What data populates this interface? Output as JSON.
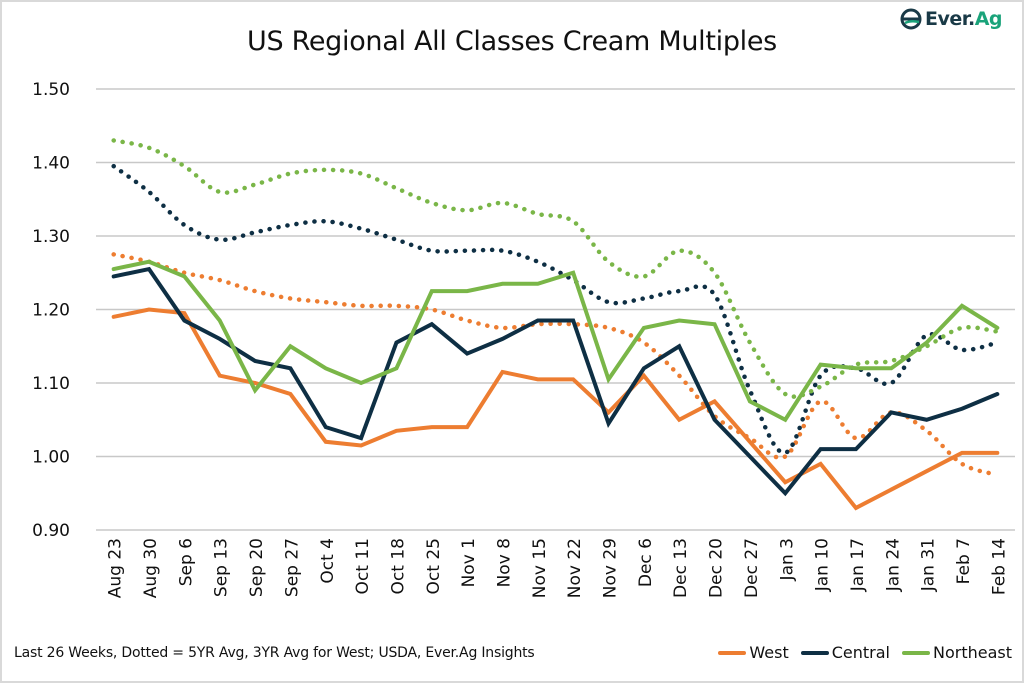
{
  "logo": {
    "brand_main": "Ever.",
    "brand_accent": "Ag"
  },
  "footer": {
    "note": "Last 26 Weeks, Dotted = 5YR Avg, 3YR Avg for West; USDA, Ever.Ag Insights"
  },
  "colors": {
    "West": "#ED7D31",
    "Central": "#0E2F44",
    "Northeast": "#7AB648",
    "grid": "#c8c8c8"
  },
  "chart_data": {
    "type": "line",
    "title": "US Regional All Classes Cream Multiples",
    "xlabel": "",
    "ylabel": "",
    "ylim": [
      0.9,
      1.5
    ],
    "yticks": [
      "0.90",
      "1.00",
      "1.10",
      "1.20",
      "1.30",
      "1.40",
      "1.50"
    ],
    "ytick_values": [
      0.9,
      1.0,
      1.1,
      1.2,
      1.3,
      1.4,
      1.5
    ],
    "grid": true,
    "legend_position": "bottom-right",
    "categories": [
      "Aug 23",
      "Aug 30",
      "Sep 6",
      "Sep 13",
      "Sep 20",
      "Sep 27",
      "Oct 4",
      "Oct 11",
      "Oct 18",
      "Oct 25",
      "Nov 1",
      "Nov 8",
      "Nov 15",
      "Nov 22",
      "Nov 29",
      "Dec 6",
      "Dec 13",
      "Dec 20",
      "Dec 27",
      "Jan 3",
      "Jan 10",
      "Jan 17",
      "Jan 24",
      "Jan 31",
      "Feb 7",
      "Feb 14"
    ],
    "series": [
      {
        "name": "West",
        "style": "solid",
        "color": "#ED7D31",
        "values": [
          1.19,
          1.2,
          1.195,
          1.11,
          1.1,
          1.085,
          1.02,
          1.015,
          1.035,
          1.04,
          1.04,
          1.115,
          1.105,
          1.105,
          1.06,
          1.11,
          1.05,
          1.075,
          1.02,
          0.965,
          0.99,
          0.93,
          0.955,
          0.98,
          1.005,
          1.005
        ]
      },
      {
        "name": "Central",
        "style": "solid",
        "color": "#0E2F44",
        "values": [
          1.245,
          1.255,
          1.185,
          1.16,
          1.13,
          1.12,
          1.04,
          1.025,
          1.155,
          1.18,
          1.14,
          1.16,
          1.185,
          1.185,
          1.045,
          1.12,
          1.15,
          1.05,
          1.0,
          0.95,
          1.01,
          1.01,
          1.06,
          1.05,
          1.065,
          1.085
        ]
      },
      {
        "name": "Northeast",
        "style": "solid",
        "color": "#7AB648",
        "values": [
          1.255,
          1.265,
          1.245,
          1.185,
          1.09,
          1.15,
          1.12,
          1.1,
          1.12,
          1.225,
          1.225,
          1.235,
          1.235,
          1.25,
          1.105,
          1.175,
          1.185,
          1.18,
          1.075,
          1.05,
          1.125,
          1.12,
          1.12,
          1.155,
          1.205,
          1.175
        ]
      },
      {
        "name": "West 3YR Avg",
        "style": "dotted",
        "color": "#ED7D31",
        "values": [
          1.275,
          1.265,
          1.25,
          1.24,
          1.225,
          1.215,
          1.21,
          1.205,
          1.205,
          1.2,
          1.185,
          1.175,
          1.18,
          1.18,
          1.175,
          1.155,
          1.11,
          1.055,
          1.025,
          1.0,
          1.075,
          1.025,
          1.06,
          1.035,
          0.99,
          0.975
        ]
      },
      {
        "name": "Central 5YR Avg",
        "style": "dotted",
        "color": "#0E2F44",
        "values": [
          1.395,
          1.36,
          1.315,
          1.295,
          1.305,
          1.315,
          1.32,
          1.31,
          1.295,
          1.28,
          1.28,
          1.28,
          1.265,
          1.24,
          1.21,
          1.215,
          1.225,
          1.22,
          1.09,
          1.005,
          1.11,
          1.12,
          1.1,
          1.165,
          1.145,
          1.155
        ]
      },
      {
        "name": "Northeast 5YR Avg",
        "style": "dotted",
        "color": "#7AB648",
        "values": [
          1.43,
          1.42,
          1.395,
          1.36,
          1.37,
          1.385,
          1.39,
          1.385,
          1.365,
          1.345,
          1.335,
          1.345,
          1.33,
          1.32,
          1.265,
          1.245,
          1.28,
          1.25,
          1.155,
          1.085,
          1.095,
          1.125,
          1.13,
          1.15,
          1.175,
          1.17
        ]
      }
    ],
    "legend": [
      "West",
      "Central",
      "Northeast"
    ]
  }
}
